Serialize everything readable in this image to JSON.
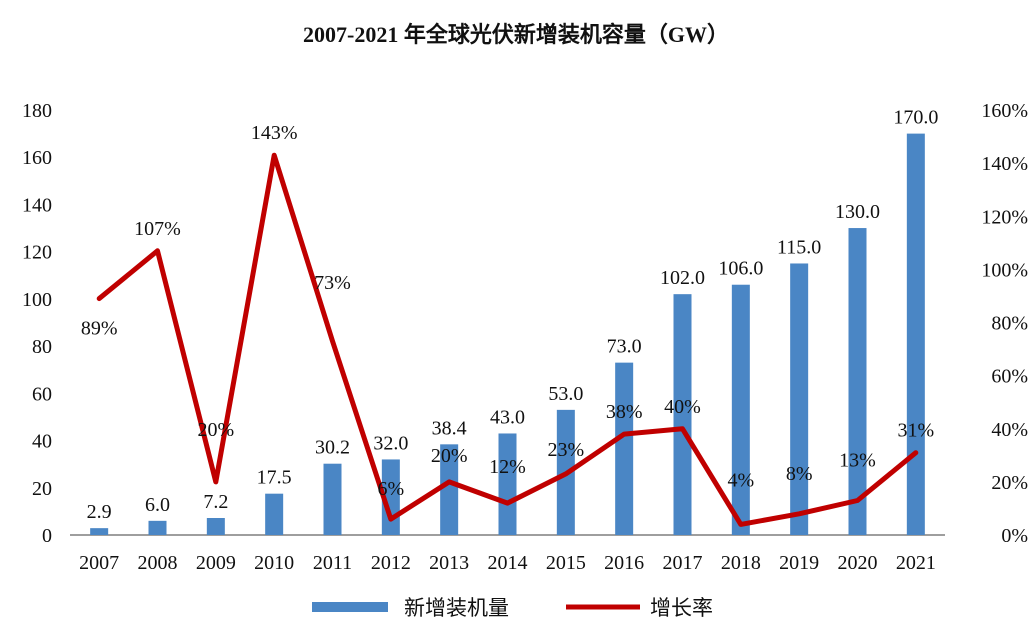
{
  "chart_data": {
    "type": "bar+line",
    "title": "2007-2021 年全球光伏新增装机容量（GW）",
    "categories": [
      "2007",
      "2008",
      "2009",
      "2010",
      "2011",
      "2012",
      "2013",
      "2014",
      "2015",
      "2016",
      "2017",
      "2018",
      "2019",
      "2020",
      "2021"
    ],
    "category_labels": [
      "2007",
      "2008",
      "2009",
      "2010",
      "2011",
      "2012",
      "2013",
      "2014",
      "2015",
      "2016",
      "2017",
      "2018",
      "2019",
      "2020",
      "2021"
    ],
    "series": [
      {
        "name": "新增装机量",
        "kind": "bar",
        "axis": "left",
        "color": "#4a86c5",
        "values": [
          2.9,
          6.0,
          7.2,
          17.5,
          30.2,
          32.0,
          38.4,
          43.0,
          53.0,
          73.0,
          102.0,
          106.0,
          115.0,
          130.0,
          170.0
        ],
        "labels": [
          "2.9",
          "6.0",
          "7.2",
          "17.5",
          "30.2",
          "32.0",
          "38.4",
          "43.0",
          "53.0",
          "73.0",
          "102.0",
          "106.0",
          "115.0",
          "130.0",
          "170.0"
        ]
      },
      {
        "name": "增长率",
        "kind": "line",
        "axis": "right",
        "color": "#c00000",
        "values": [
          89,
          107,
          20,
          143,
          73,
          6,
          20,
          12,
          23,
          38,
          40,
          4,
          8,
          13,
          31
        ],
        "labels": [
          "89%",
          "107%",
          "20%",
          "143%",
          "73%",
          "6%",
          "20%",
          "12%",
          "23%",
          "38%",
          "40%",
          "4%",
          "8%",
          "13%",
          "31%"
        ]
      }
    ],
    "y_left": {
      "min": 0,
      "max": 180,
      "ticks": [
        "0",
        "20",
        "40",
        "60",
        "80",
        "100",
        "120",
        "140",
        "160",
        "180"
      ]
    },
    "y_right": {
      "min": 0,
      "max": 160,
      "ticks": [
        "0%",
        "20%",
        "40%",
        "60%",
        "80%",
        "100%",
        "120%",
        "140%",
        "160%"
      ]
    },
    "legend": {
      "position": "bottom",
      "items": [
        "新增装机量",
        "增长率"
      ]
    },
    "grid": false
  }
}
